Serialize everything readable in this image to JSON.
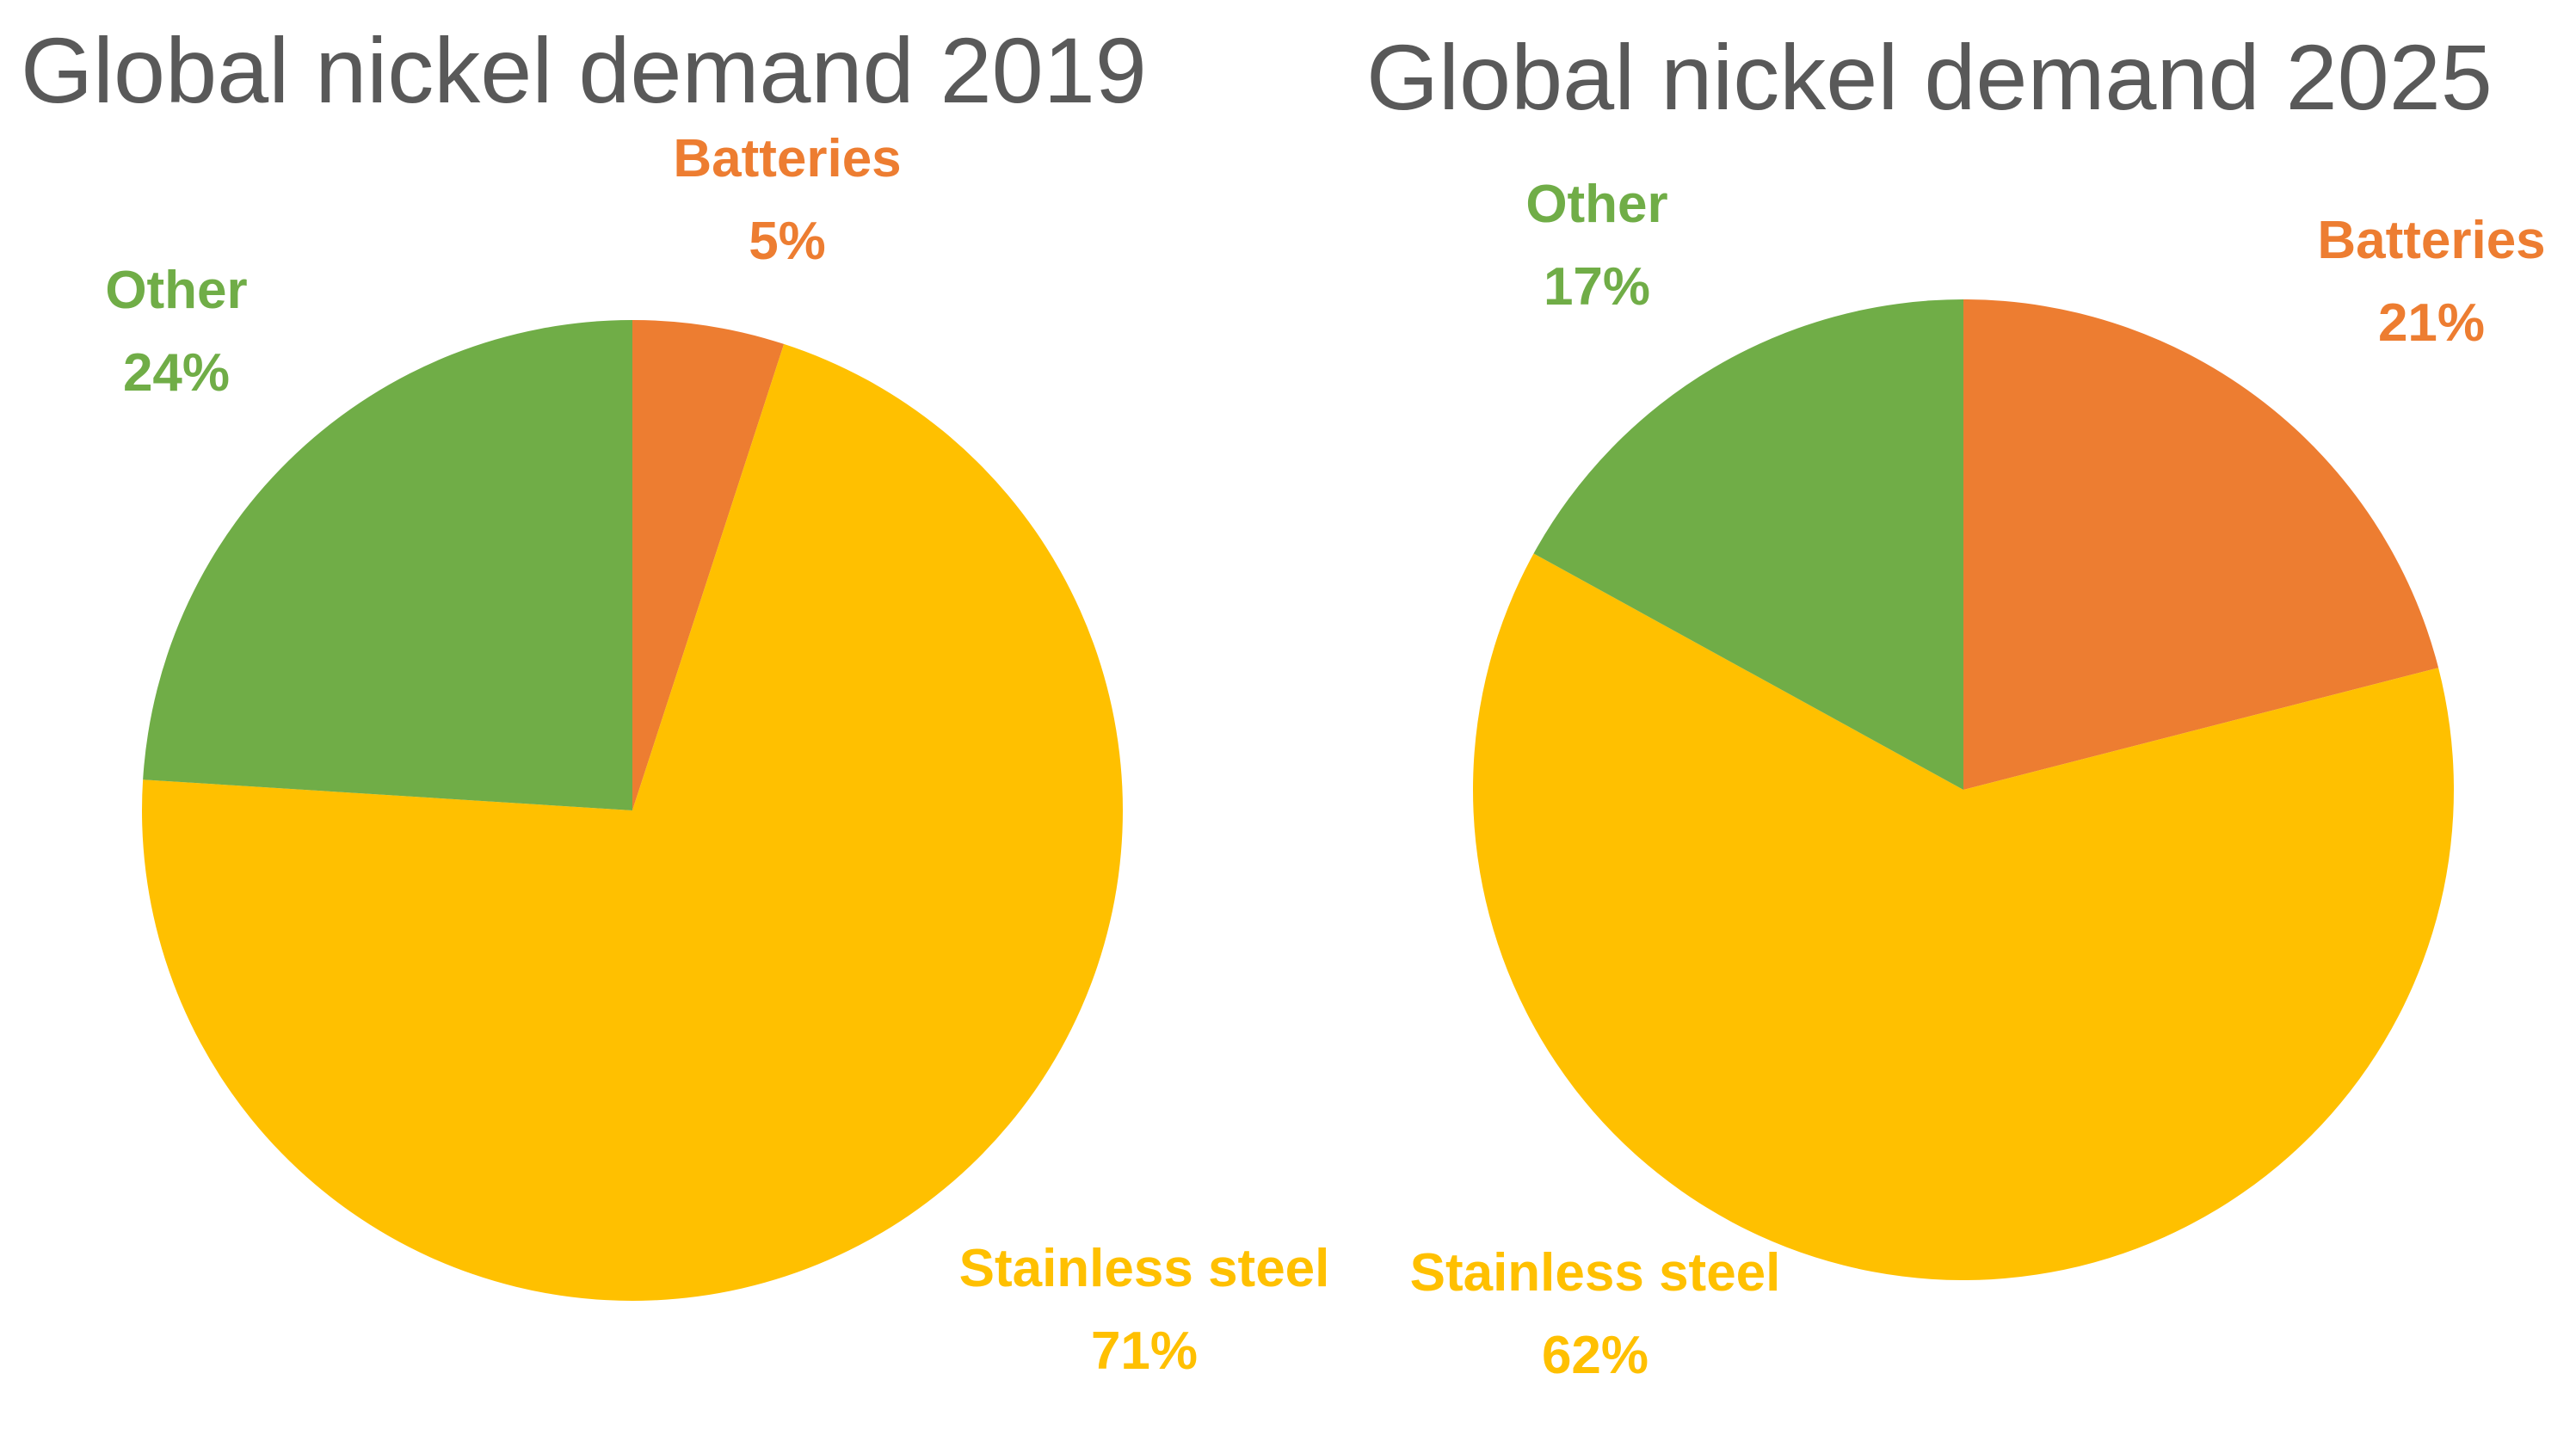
{
  "chart_data": [
    {
      "type": "pie",
      "title": "Global nickel demand 2019",
      "slices": [
        {
          "label": "Batteries",
          "value": 5,
          "value_label": "5%",
          "color": "#ED7D31"
        },
        {
          "label": "Stainless steel",
          "value": 71,
          "value_label": "71%",
          "color": "#FFC000"
        },
        {
          "label": "Other",
          "value": 24,
          "value_label": "24%",
          "color": "#70AD47"
        }
      ]
    },
    {
      "type": "pie",
      "title": "Global nickel demand 2025",
      "slices": [
        {
          "label": "Batteries",
          "value": 21,
          "value_label": "21%",
          "color": "#ED7D31"
        },
        {
          "label": "Stainless steel",
          "value": 62,
          "value_label": "62%",
          "color": "#FFC000"
        },
        {
          "label": "Other",
          "value": 17,
          "value_label": "17%",
          "color": "#70AD47"
        }
      ]
    }
  ]
}
